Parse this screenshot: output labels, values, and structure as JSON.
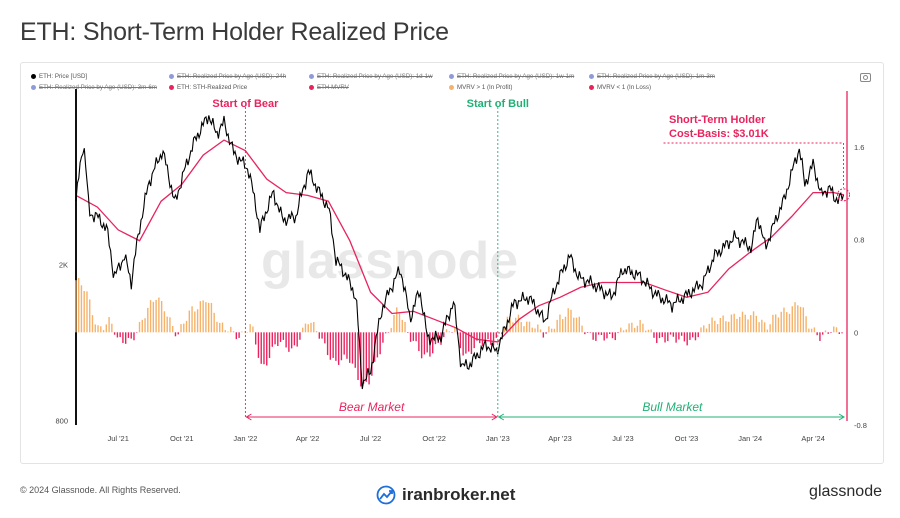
{
  "header": {
    "title": "ETH: Short-Term Holder Realized Price"
  },
  "legend": {
    "items": [
      {
        "label": "ETH: Price [USD]",
        "color": "#000000",
        "active": true
      },
      {
        "label": "ETH: Realized Price by Age (USD): 24h",
        "color": "#8e9bd8",
        "active": false
      },
      {
        "label": "ETH: Realized Price by Age (USD): 1d-1w",
        "color": "#8e9bd8",
        "active": false
      },
      {
        "label": "ETH: Realized Price by Age (USD): 1w-1m",
        "color": "#8e9bd8",
        "active": false
      },
      {
        "label": "ETH: Realized Price by Age (USD): 1m-3m",
        "color": "#8e9bd8",
        "active": false
      },
      {
        "label": "ETH: Realized Price by Age (USD): 3m-6m",
        "color": "#8e9bd8",
        "active": false
      },
      {
        "label": "ETH: STH-Realized Price",
        "color": "#e8245f",
        "active": true
      },
      {
        "label": "ETH MVRV",
        "color": "#e8245f",
        "active": false
      },
      {
        "label": "MVRV > 1 (In Profit)",
        "color": "#f5b26b",
        "active": true
      },
      {
        "label": "MVRV < 1 (In Loss)",
        "color": "#e8245f",
        "active": true
      }
    ]
  },
  "annotations": {
    "start_bear": "Start of Bear",
    "start_bull": "Start of Bull",
    "sth_label_line1": "Short-Term Holder",
    "sth_label_line2": "Cost-Basis: $3.01K",
    "bear_market": "Bear Market",
    "bull_market": "Bull Market",
    "watermark": "glassnode"
  },
  "colors": {
    "price": "#000000",
    "sth": "#e8245f",
    "profit": "#f5b26b",
    "loss": "#e8245f",
    "bull": "#20b074"
  },
  "footer": {
    "copyright": "© 2024 Glassnode. All Rights Reserved.",
    "broker": "iranbroker.net",
    "brand": "glassnode"
  },
  "chart_data": {
    "type": "line",
    "title": "ETH: Short-Term Holder Realized Price",
    "x_ticks": [
      "Jul '21",
      "Oct '21",
      "Jan '22",
      "Apr '22",
      "Jul '22",
      "Oct '22",
      "Jan '23",
      "Apr '23",
      "Jul '23",
      "Oct '23",
      "Jan '24",
      "Apr '24"
    ],
    "x_range": [
      "2021-05-01",
      "2024-05-20"
    ],
    "y_left": {
      "scale": "log",
      "ticks": [
        {
          "v": 2000,
          "label": "2K"
        },
        {
          "v": 800,
          "label": "800"
        }
      ],
      "range": [
        780,
        5600
      ]
    },
    "y_right": {
      "ticks": [
        {
          "v": 1.6,
          "label": "1.6"
        },
        {
          "v": 0.8,
          "label": "0.8"
        },
        {
          "v": 0,
          "label": "0"
        },
        {
          "v": -0.8,
          "label": "-0.8"
        }
      ],
      "range": [
        -0.8,
        2.1
      ]
    },
    "series": [
      {
        "name": "ETH: Price [USD]",
        "axis": "left",
        "points": [
          [
            "2021-05-01",
            2900
          ],
          [
            "2021-05-12",
            4100
          ],
          [
            "2021-05-20",
            2700
          ],
          [
            "2021-06-01",
            2650
          ],
          [
            "2021-06-15",
            2450
          ],
          [
            "2021-06-25",
            1850
          ],
          [
            "2021-07-10",
            2100
          ],
          [
            "2021-07-20",
            1800
          ],
          [
            "2021-08-05",
            2700
          ],
          [
            "2021-08-15",
            3250
          ],
          [
            "2021-09-03",
            3900
          ],
          [
            "2021-09-21",
            2850
          ],
          [
            "2021-10-01",
            3300
          ],
          [
            "2021-10-20",
            4150
          ],
          [
            "2021-11-09",
            4800
          ],
          [
            "2021-11-20",
            4300
          ],
          [
            "2021-12-01",
            4600
          ],
          [
            "2021-12-15",
            3850
          ],
          [
            "2022-01-05",
            3500
          ],
          [
            "2022-01-22",
            2450
          ],
          [
            "2022-02-10",
            3050
          ],
          [
            "2022-02-24",
            2600
          ],
          [
            "2022-03-15",
            2650
          ],
          [
            "2022-04-02",
            3450
          ],
          [
            "2022-04-20",
            3000
          ],
          [
            "2022-05-01",
            2800
          ],
          [
            "2022-05-12",
            2050
          ],
          [
            "2022-05-25",
            1900
          ],
          [
            "2022-06-10",
            1650
          ],
          [
            "2022-06-18",
            1000
          ],
          [
            "2022-07-01",
            1060
          ],
          [
            "2022-07-18",
            1550
          ],
          [
            "2022-08-13",
            1950
          ],
          [
            "2022-08-27",
            1450
          ],
          [
            "2022-09-10",
            1720
          ],
          [
            "2022-09-21",
            1300
          ],
          [
            "2022-10-10",
            1300
          ],
          [
            "2022-10-29",
            1600
          ],
          [
            "2022-11-09",
            1100
          ],
          [
            "2022-11-21",
            1110
          ],
          [
            "2022-12-15",
            1250
          ],
          [
            "2022-12-30",
            1200
          ],
          [
            "2023-01-10",
            1350
          ],
          [
            "2023-01-25",
            1600
          ],
          [
            "2023-02-15",
            1650
          ],
          [
            "2023-03-10",
            1430
          ],
          [
            "2023-03-25",
            1750
          ],
          [
            "2023-04-15",
            2100
          ],
          [
            "2023-04-28",
            1850
          ],
          [
            "2023-05-15",
            1800
          ],
          [
            "2023-06-15",
            1650
          ],
          [
            "2023-07-01",
            1950
          ],
          [
            "2023-07-25",
            1870
          ],
          [
            "2023-08-17",
            1680
          ],
          [
            "2023-09-10",
            1580
          ],
          [
            "2023-10-01",
            1670
          ],
          [
            "2023-10-25",
            1800
          ],
          [
            "2023-11-10",
            2100
          ],
          [
            "2023-12-10",
            2350
          ],
          [
            "2024-01-03",
            2200
          ],
          [
            "2024-01-12",
            2650
          ],
          [
            "2024-01-23",
            2200
          ],
          [
            "2024-02-20",
            2950
          ],
          [
            "2024-03-12",
            3950
          ],
          [
            "2024-03-20",
            3200
          ],
          [
            "2024-04-01",
            3600
          ],
          [
            "2024-04-13",
            3000
          ],
          [
            "2024-04-25",
            3150
          ],
          [
            "2024-05-01",
            2950
          ],
          [
            "2024-05-15",
            2950
          ]
        ]
      },
      {
        "name": "ETH: STH-Realized Price",
        "axis": "left",
        "points": [
          [
            "2021-05-01",
            3000
          ],
          [
            "2021-06-01",
            2800
          ],
          [
            "2021-07-01",
            2450
          ],
          [
            "2021-08-01",
            2300
          ],
          [
            "2021-09-01",
            2900
          ],
          [
            "2021-10-01",
            3200
          ],
          [
            "2021-11-01",
            3800
          ],
          [
            "2021-12-01",
            4150
          ],
          [
            "2022-01-01",
            3900
          ],
          [
            "2022-02-01",
            3300
          ],
          [
            "2022-03-01",
            3050
          ],
          [
            "2022-04-01",
            3000
          ],
          [
            "2022-05-01",
            2900
          ],
          [
            "2022-06-01",
            2300
          ],
          [
            "2022-07-01",
            1700
          ],
          [
            "2022-08-01",
            1500
          ],
          [
            "2022-09-01",
            1520
          ],
          [
            "2022-10-01",
            1450
          ],
          [
            "2022-11-01",
            1380
          ],
          [
            "2022-12-01",
            1290
          ],
          [
            "2023-01-01",
            1270
          ],
          [
            "2023-02-01",
            1450
          ],
          [
            "2023-03-01",
            1570
          ],
          [
            "2023-04-01",
            1650
          ],
          [
            "2023-05-01",
            1750
          ],
          [
            "2023-06-01",
            1800
          ],
          [
            "2023-07-01",
            1800
          ],
          [
            "2023-08-01",
            1800
          ],
          [
            "2023-09-01",
            1720
          ],
          [
            "2023-10-01",
            1650
          ],
          [
            "2023-11-01",
            1700
          ],
          [
            "2023-12-01",
            1950
          ],
          [
            "2024-01-01",
            2150
          ],
          [
            "2024-02-01",
            2350
          ],
          [
            "2024-03-01",
            2650
          ],
          [
            "2024-04-01",
            3050
          ],
          [
            "2024-05-01",
            3050
          ],
          [
            "2024-05-15",
            3010
          ]
        ]
      },
      {
        "name": "MVRV > 1 (In Profit)",
        "axis": "right",
        "points": [
          [
            "2021-05-01",
            0.45
          ],
          [
            "2021-05-15",
            0.35
          ],
          [
            "2021-06-01",
            0.05
          ],
          [
            "2021-06-20",
            0.1
          ],
          [
            "2021-07-01",
            -0.1
          ],
          [
            "2021-07-20",
            -0.05
          ],
          [
            "2021-08-10",
            0.15
          ],
          [
            "2021-08-25",
            0.3
          ],
          [
            "2021-09-05",
            0.25
          ],
          [
            "2021-09-25",
            -0.05
          ],
          [
            "2021-10-15",
            0.2
          ],
          [
            "2021-11-05",
            0.3
          ],
          [
            "2021-11-25",
            0.05
          ],
          [
            "2021-12-10",
            0.05
          ],
          [
            "2021-12-25",
            -0.05
          ],
          [
            "2022-01-10",
            0.05
          ],
          [
            "2022-01-25",
            -0.3
          ],
          [
            "2022-02-15",
            -0.1
          ],
          [
            "2022-03-10",
            -0.15
          ],
          [
            "2022-04-01",
            0.1
          ],
          [
            "2022-04-20",
            -0.05
          ],
          [
            "2022-05-10",
            -0.25
          ],
          [
            "2022-06-01",
            -0.25
          ],
          [
            "2022-06-20",
            -0.45
          ],
          [
            "2022-07-01",
            -0.4
          ],
          [
            "2022-07-20",
            -0.1
          ],
          [
            "2022-08-10",
            0.25
          ],
          [
            "2022-08-25",
            -0.05
          ],
          [
            "2022-09-15",
            -0.2
          ],
          [
            "2022-10-10",
            -0.1
          ],
          [
            "2022-10-30",
            0.05
          ],
          [
            "2022-11-15",
            -0.2
          ],
          [
            "2022-12-10",
            -0.1
          ],
          [
            "2022-12-30",
            -0.05
          ],
          [
            "2023-01-15",
            0.08
          ],
          [
            "2023-02-01",
            0.12
          ],
          [
            "2023-02-20",
            0.08
          ],
          [
            "2023-03-10",
            -0.05
          ],
          [
            "2023-04-01",
            0.15
          ],
          [
            "2023-04-15",
            0.18
          ],
          [
            "2023-05-10",
            0.0
          ],
          [
            "2023-06-15",
            -0.08
          ],
          [
            "2023-07-05",
            0.08
          ],
          [
            "2023-08-01",
            0.04
          ],
          [
            "2023-08-20",
            -0.04
          ],
          [
            "2023-09-15",
            -0.08
          ],
          [
            "2023-10-10",
            -0.05
          ],
          [
            "2023-11-01",
            0.05
          ],
          [
            "2023-11-20",
            0.14
          ],
          [
            "2023-12-20",
            0.12
          ],
          [
            "2024-01-10",
            0.18
          ],
          [
            "2024-01-25",
            0.03
          ],
          [
            "2024-02-15",
            0.18
          ],
          [
            "2024-03-12",
            0.26
          ],
          [
            "2024-03-25",
            0.05
          ],
          [
            "2024-04-10",
            -0.02
          ],
          [
            "2024-04-25",
            0.02
          ],
          [
            "2024-05-15",
            -0.02
          ]
        ]
      }
    ],
    "events": [
      {
        "label": "Start of Bear",
        "date": "2022-01-01"
      },
      {
        "label": "Start of Bull",
        "date": "2023-01-01"
      }
    ],
    "periods": [
      {
        "label": "Bear Market",
        "from": "2022-01-01",
        "to": "2023-01-01"
      },
      {
        "label": "Bull Market",
        "from": "2023-01-01",
        "to": "2024-05-20"
      }
    ],
    "callout": {
      "label": "Short-Term Holder Cost-Basis: $3.01K",
      "date": "2024-05-15",
      "value": 3010
    }
  }
}
